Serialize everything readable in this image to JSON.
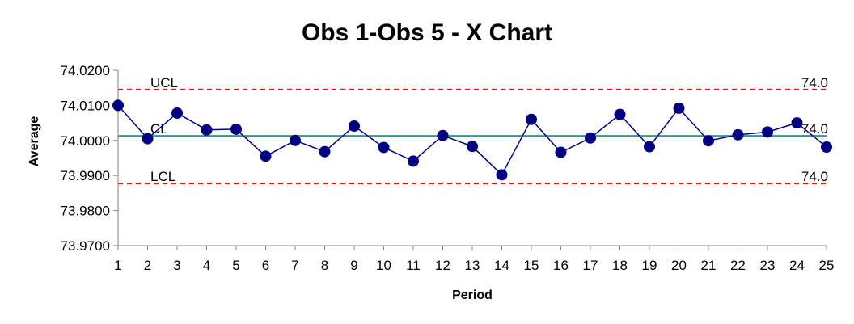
{
  "chart_data": {
    "type": "line",
    "title": "Obs 1-Obs 5 - X Chart",
    "xlabel": "Period",
    "ylabel": "Average",
    "ylim": [
      73.97,
      74.02
    ],
    "y_ticks": [
      "74.0200",
      "74.0100",
      "74.0000",
      "73.9900",
      "73.9800",
      "73.9700"
    ],
    "x": [
      1,
      2,
      3,
      4,
      5,
      6,
      7,
      8,
      9,
      10,
      11,
      12,
      13,
      14,
      15,
      16,
      17,
      18,
      19,
      20,
      21,
      22,
      23,
      24,
      25
    ],
    "series": [
      {
        "values": [
          74.01,
          74.0005,
          74.0078,
          74.003,
          74.0032,
          73.9955,
          74.0,
          73.9968,
          74.0041,
          73.998,
          73.9941,
          74.0014,
          73.9983,
          73.9902,
          74.006,
          73.9966,
          74.0007,
          74.0074,
          73.9982,
          74.0092,
          73.9999,
          74.0016,
          74.0024,
          74.005,
          73.9981
        ],
        "color": "#000080"
      }
    ],
    "limits": [
      {
        "name": "UCL",
        "value": 74.0145,
        "right_label": "74.0",
        "color": "#FF0000",
        "style": "dashed"
      },
      {
        "name": "CL",
        "value": 74.0013,
        "right_label": "74.0",
        "color": "#1AA0A0",
        "style": "solid"
      },
      {
        "name": "LCL",
        "value": 73.9877,
        "right_label": "74.0",
        "color": "#FF0000",
        "style": "dashed"
      }
    ],
    "grid": false,
    "legend": "none"
  }
}
